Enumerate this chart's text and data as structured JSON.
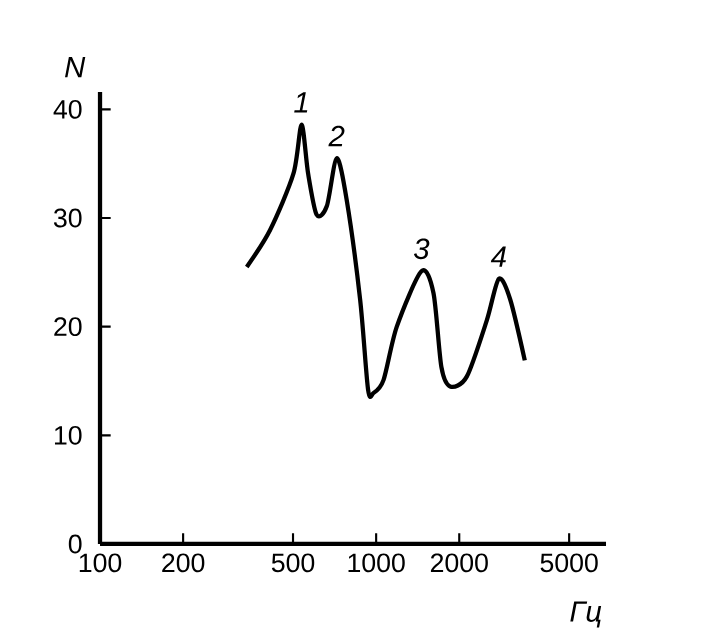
{
  "chart_data": {
    "type": "line",
    "xlabel": "Гц",
    "ylabel": "N",
    "log": "x",
    "xlim": [
      100,
      6800
    ],
    "ylim": [
      0,
      41.6
    ],
    "xticks": [
      100,
      200,
      500,
      1000,
      2000,
      5000
    ],
    "yticks": [
      0,
      10,
      20,
      30,
      40
    ],
    "grid": false,
    "marker": "none",
    "line_style": "solid",
    "x": [
      340,
      413,
      502,
      537,
      567,
      609,
      663,
      720,
      782,
      875,
      935,
      978,
      1064,
      1188,
      1459,
      1613,
      1723,
      1854,
      2129,
      2518,
      2782,
      3059,
      3454
    ],
    "series": [
      {
        "color": "#000000",
        "values": [
          25.5,
          28.9,
          34.1,
          38.6,
          34.1,
          30.3,
          31.1,
          35.5,
          31.7,
          22.5,
          14.2,
          13.9,
          15.1,
          20.0,
          25.1,
          23.1,
          16.3,
          14.5,
          15.4,
          20.6,
          24.4,
          22.5,
          16.9
        ]
      }
    ],
    "annotations": [
      {
        "text": "1",
        "x": 537,
        "y": 38.6
      },
      {
        "text": "2",
        "x": 720,
        "y": 35.5
      },
      {
        "text": "3",
        "x": 1459,
        "y": 25.1
      },
      {
        "text": "4",
        "x": 2782,
        "y": 24.4
      }
    ]
  }
}
